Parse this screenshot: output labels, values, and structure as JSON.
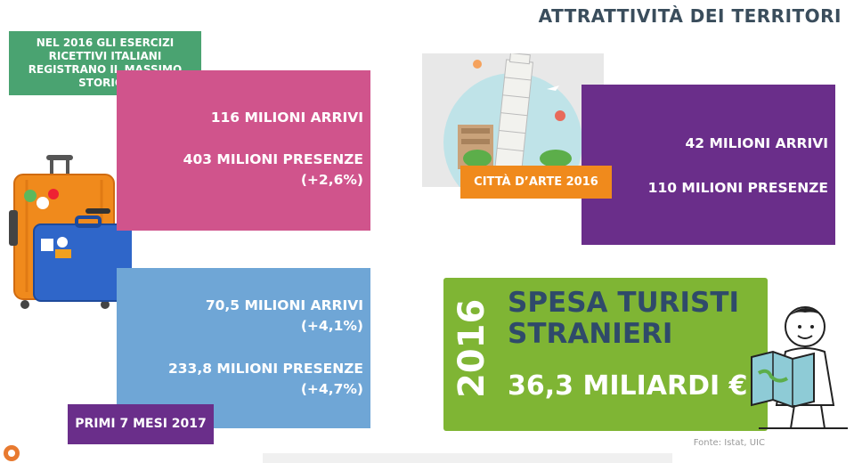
{
  "header": {
    "title": "ATTRATTIVITÀ DEI TERRITORI"
  },
  "record_note": {
    "text": "NEL 2016 GLI ESERCIZI RICETTIVI ITALIANI REGISTRANO IL MASSIMO STORICO"
  },
  "year_2016": {
    "arrivi": "116 MILIONI ARRIVI",
    "presenze": "403 MILIONI PRESENZE",
    "presenze_change": "(+2,6%)"
  },
  "first_7_months": {
    "arrivi": "70,5 MILIONI ARRIVI",
    "arrivi_change": "(+4,1%)",
    "presenze": "233,8 MILIONI PRESENZE",
    "presenze_change": "(+4,7%)",
    "label": "PRIMI 7 MESI 2017"
  },
  "art_cities": {
    "label": "CITTÀ D’ARTE 2016",
    "arrivi": "42 MILIONI ARRIVI",
    "presenze": "110 MILIONI PRESENZE"
  },
  "spending": {
    "year": "2016",
    "title_line1": "SPESA TURISTI",
    "title_line2": "STRANIERI",
    "amount": "36,3 MILIARDI €"
  },
  "source": "Fonte: Istat, UIC",
  "colors": {
    "pink": "#d0548c",
    "blue": "#6fa6d6",
    "purple": "#6a2e8a",
    "green": "#7fb534",
    "orange": "#f08a1c",
    "note_green": "#4aa371"
  },
  "icons": [
    "suitcase-illustration",
    "leaning-tower-illustration",
    "tourist-with-map-illustration",
    "logo-icon"
  ]
}
